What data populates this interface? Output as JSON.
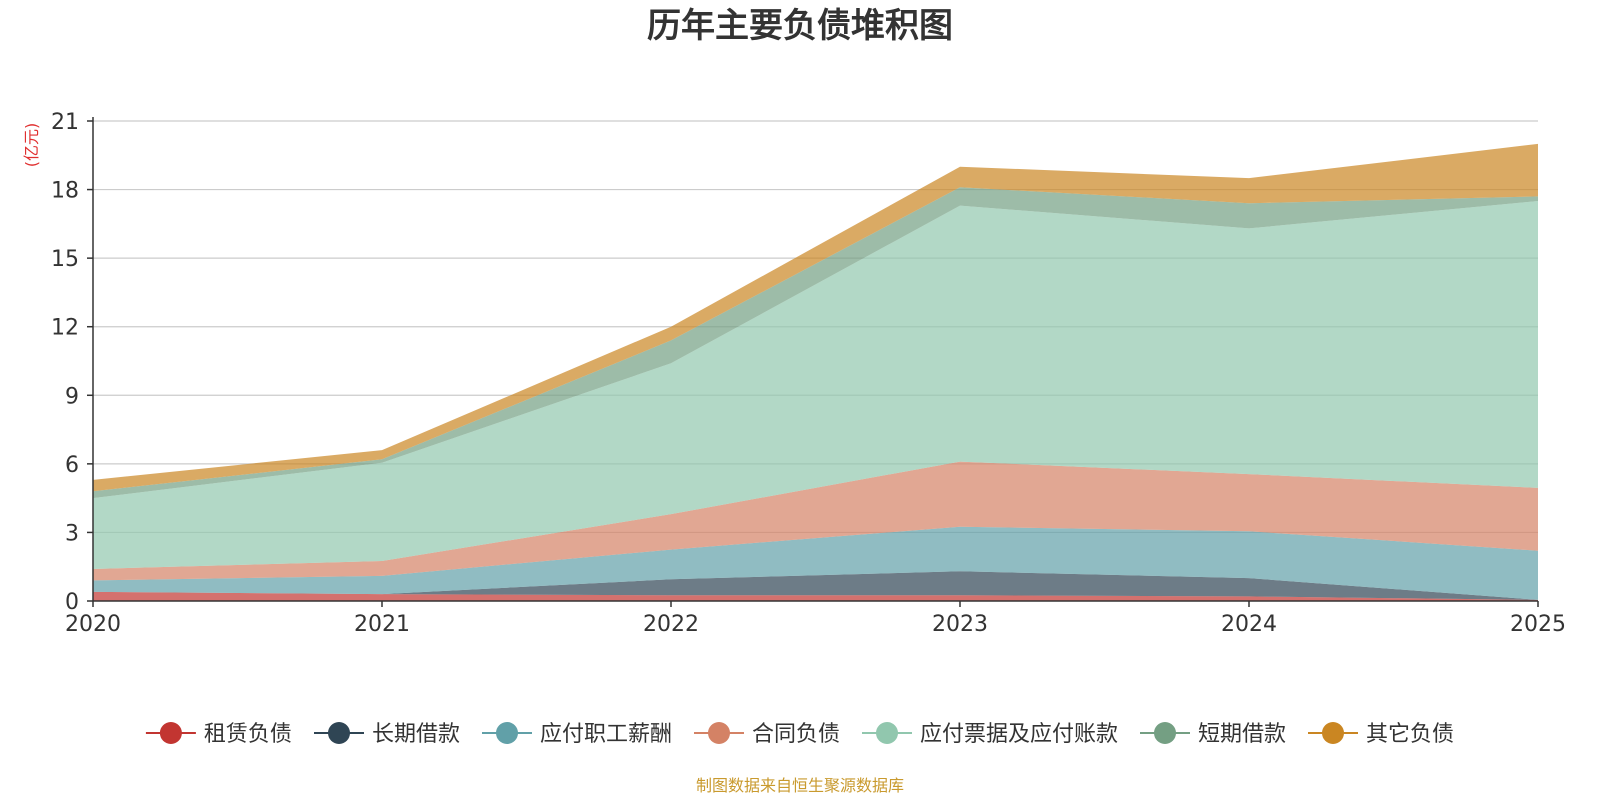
{
  "chart_data": {
    "type": "area",
    "stacked": true,
    "title": "历年主要负债堆积图",
    "unit_label": "(亿元)",
    "x": [
      "2020",
      "2021",
      "2022",
      "2023",
      "2024",
      "2025"
    ],
    "ylim": [
      0,
      21
    ],
    "yticks": [
      "0",
      "3",
      "6",
      "9",
      "12",
      "15",
      "18",
      "21"
    ],
    "grid": true,
    "legend_position": "bottom",
    "source": "制图数据来自恒生聚源数据库",
    "series": [
      {
        "name": "租赁负债",
        "color": "#c23531",
        "values": [
          0.4,
          0.3,
          0.25,
          0.25,
          0.2,
          0.05
        ]
      },
      {
        "name": "长期借款",
        "color": "#2f4554",
        "values": [
          0.0,
          0.0,
          0.7,
          1.05,
          0.8,
          0.0
        ]
      },
      {
        "name": "应付职工薪酬",
        "color": "#61a0a8",
        "values": [
          0.5,
          0.8,
          1.3,
          1.95,
          2.05,
          2.15
        ]
      },
      {
        "name": "合同负债",
        "color": "#d48265",
        "values": [
          0.5,
          0.65,
          1.55,
          2.85,
          2.5,
          2.75
        ]
      },
      {
        "name": "应付票据及应付账款",
        "color": "#91c7ae",
        "values": [
          3.1,
          4.3,
          6.6,
          11.2,
          10.75,
          12.55
        ]
      },
      {
        "name": "短期借款",
        "color": "#749f83",
        "values": [
          0.3,
          0.15,
          1.0,
          0.8,
          1.1,
          0.2
        ]
      },
      {
        "name": "其它负债",
        "color": "#ca8622",
        "values": [
          0.5,
          0.4,
          0.6,
          0.9,
          1.1,
          2.3
        ]
      }
    ]
  }
}
